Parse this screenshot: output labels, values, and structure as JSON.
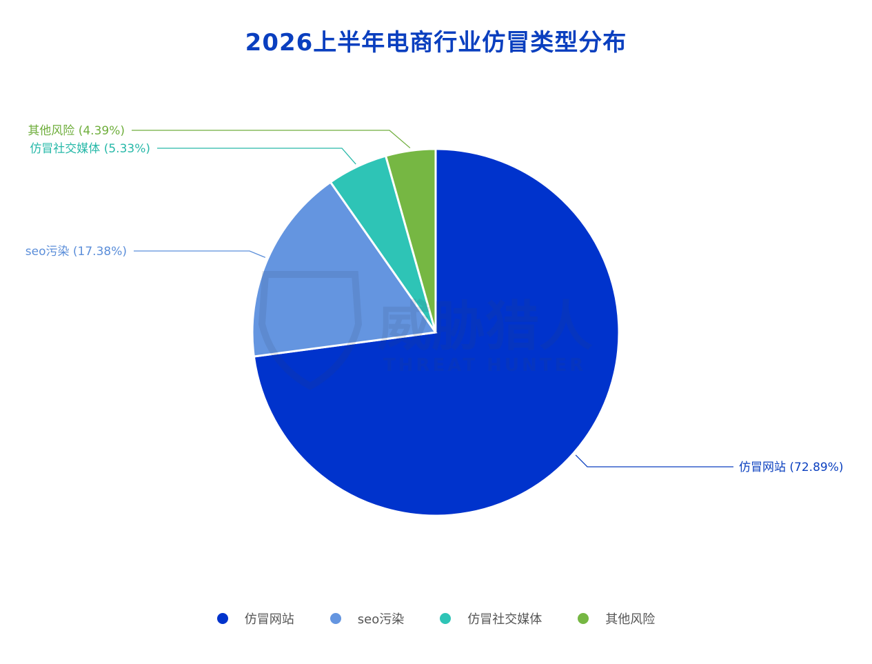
{
  "chart_data": {
    "type": "pie",
    "title": "2026上半年电商行业仿冒类型分布",
    "categories": [
      "仿冒网站",
      "seo污染",
      "仿冒社交媒体",
      "其他风险"
    ],
    "values": [
      72.89,
      17.38,
      5.33,
      4.39
    ],
    "data_labels": [
      "仿冒网站 (72.89%)",
      "seo污染 (17.38%)",
      "仿冒社交媒体 (5.33%)",
      "其他风险 (4.39%)"
    ],
    "colors": [
      "#0033cc",
      "#6495e0",
      "#2ec4b6",
      "#76b743"
    ],
    "start_angle_deg": 0,
    "direction": "clockwise",
    "legend_position": "bottom",
    "label_colors": [
      "#0a3fbf",
      "#5b8ed9",
      "#26b8a8",
      "#6fae3c"
    ]
  },
  "legend": {
    "items": [
      {
        "label": "仿冒网站",
        "color": "#0033cc"
      },
      {
        "label": "seo污染",
        "color": "#6495e0"
      },
      {
        "label": "仿冒社交媒体",
        "color": "#2ec4b6"
      },
      {
        "label": "其他风险",
        "color": "#76b743"
      }
    ]
  },
  "watermark": {
    "text_main": "威胁猎人",
    "text_sub": "THREAT HUNTER"
  }
}
